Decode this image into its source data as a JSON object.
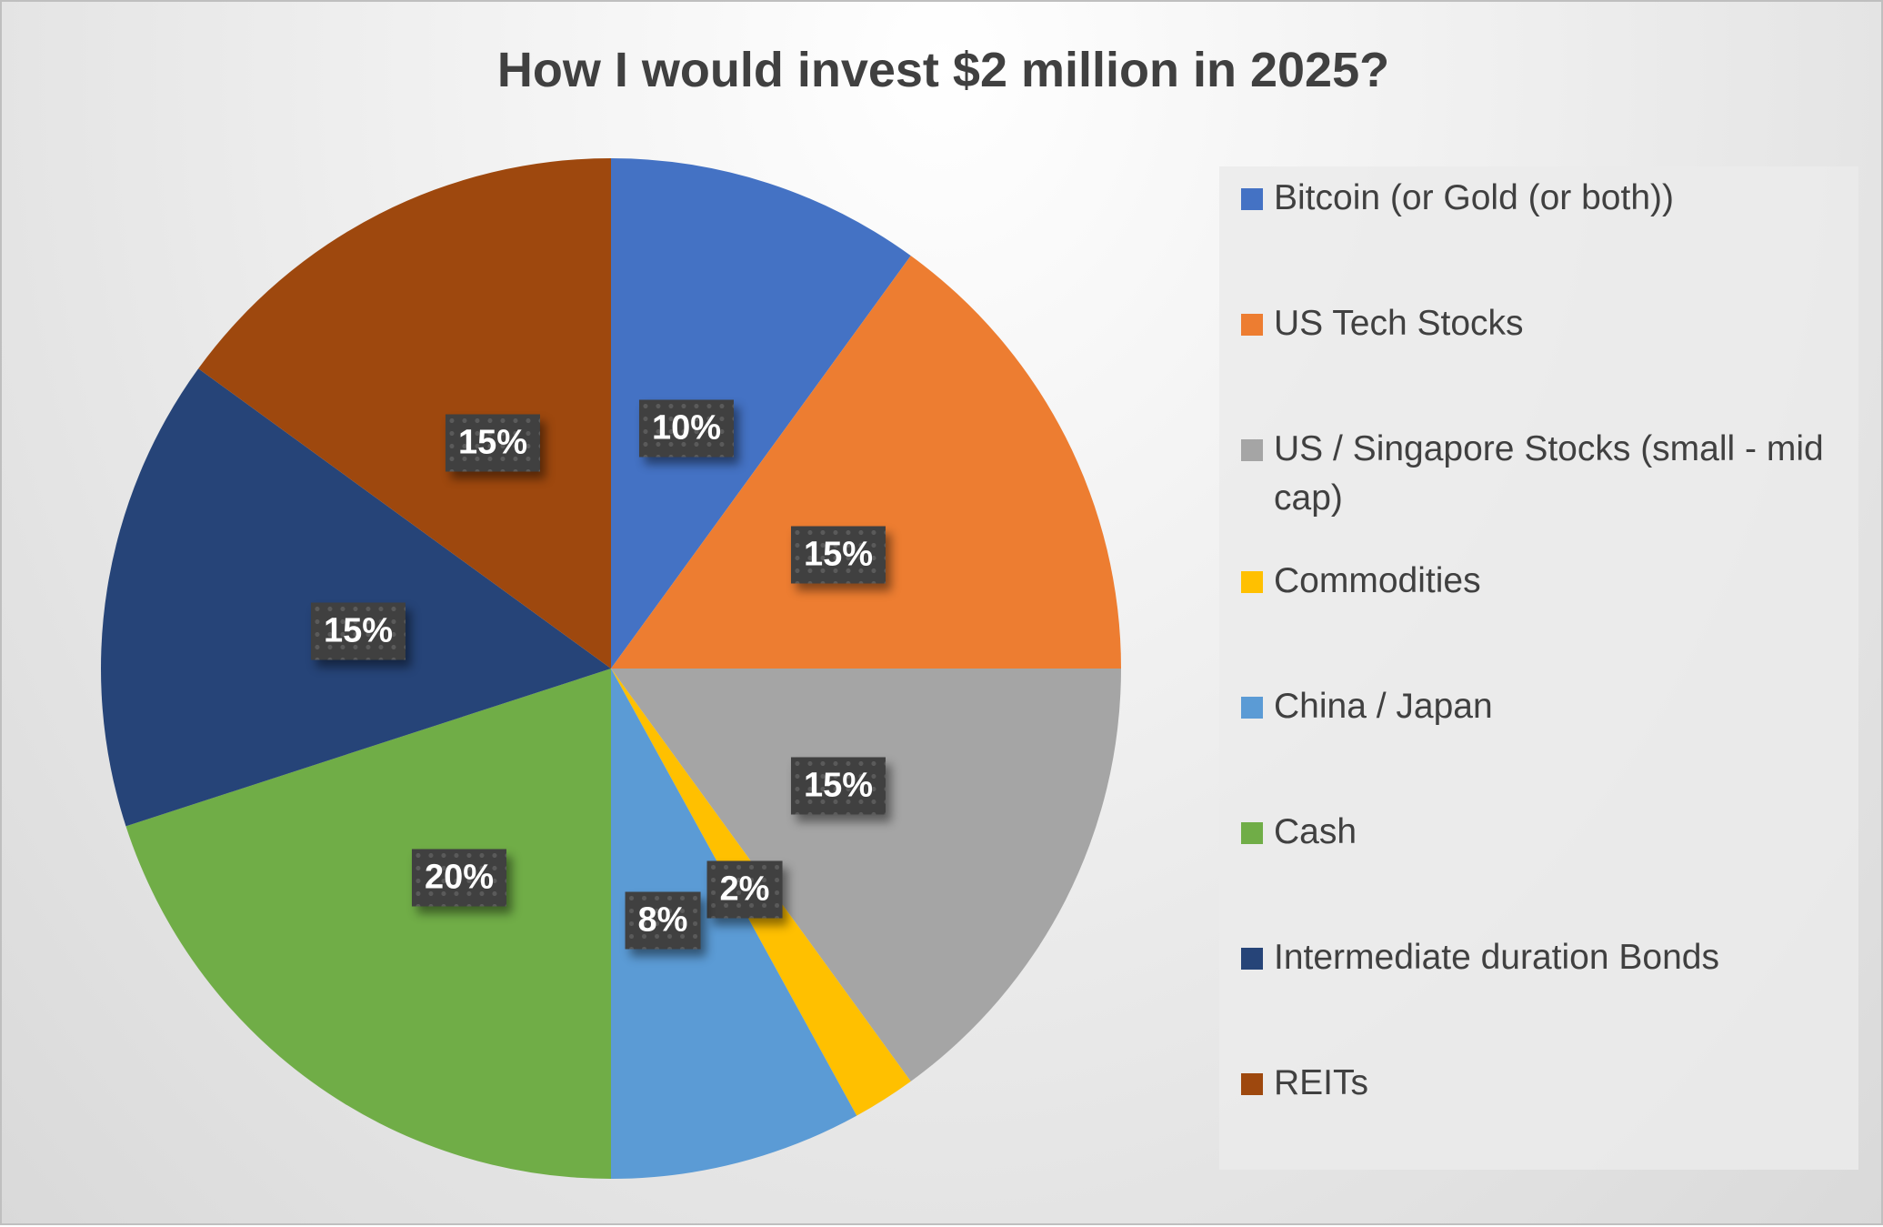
{
  "chart_data": {
    "type": "pie",
    "title": "How I would invest $2 million in 2025?",
    "legend_position": "right",
    "slices": [
      {
        "label": "Bitcoin (or Gold (or both))",
        "value": 10,
        "data_label": "10%",
        "color": "#4472C4"
      },
      {
        "label": "US Tech Stocks",
        "value": 15,
        "data_label": "15%",
        "color": "#ED7D31"
      },
      {
        "label": "US / Singapore Stocks (small - mid cap)",
        "value": 15,
        "data_label": "15%",
        "color": "#A5A5A5"
      },
      {
        "label": "Commodities",
        "value": 2,
        "data_label": "2%",
        "color": "#FFC000"
      },
      {
        "label": "China / Japan",
        "value": 8,
        "data_label": "8%",
        "color": "#5B9BD5"
      },
      {
        "label": "Cash",
        "value": 20,
        "data_label": "20%",
        "color": "#70AD47"
      },
      {
        "label": "Intermediate duration Bonds",
        "value": 15,
        "data_label": "15%",
        "color": "#264478"
      },
      {
        "label": "REITs",
        "value": 15,
        "data_label": "15%",
        "color": "#9E480E"
      }
    ]
  }
}
